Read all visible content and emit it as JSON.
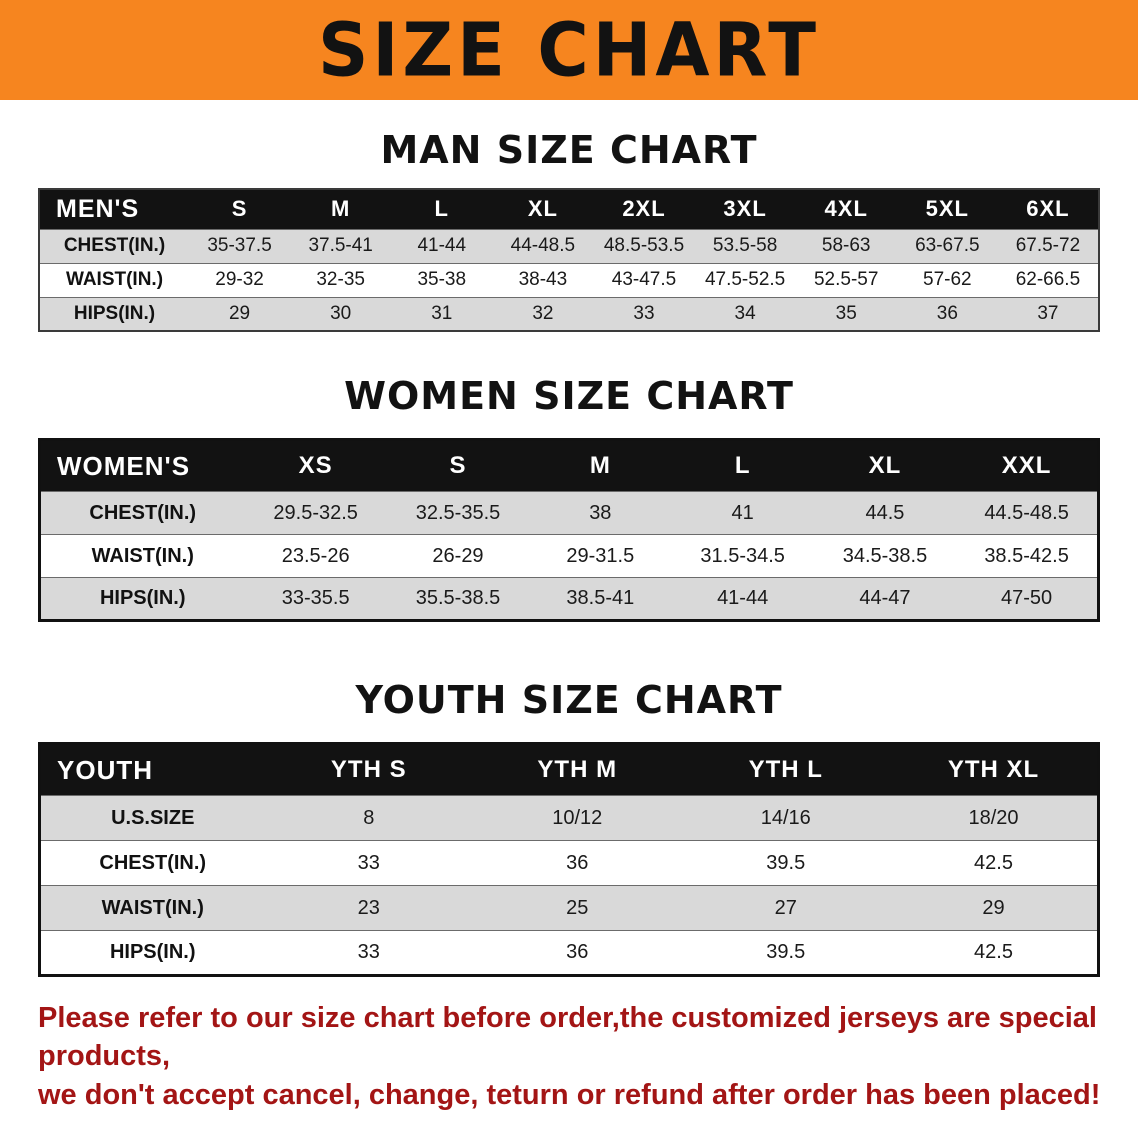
{
  "banner": {
    "title": "SIZE CHART"
  },
  "sections": {
    "men": {
      "heading": "MAN SIZE CHART",
      "table": {
        "header": [
          "MEN'S",
          "S",
          "M",
          "L",
          "XL",
          "2XL",
          "3XL",
          "4XL",
          "5XL",
          "6XL"
        ],
        "rows": [
          [
            "CHEST(IN.)",
            "35-37.5",
            "37.5-41",
            "41-44",
            "44-48.5",
            "48.5-53.5",
            "53.5-58",
            "58-63",
            "63-67.5",
            "67.5-72"
          ],
          [
            "WAIST(IN.)",
            "29-32",
            "32-35",
            "35-38",
            "38-43",
            "43-47.5",
            "47.5-52.5",
            "52.5-57",
            "57-62",
            "62-66.5"
          ],
          [
            "HIPS(IN.)",
            "29",
            "30",
            "31",
            "32",
            "33",
            "34",
            "35",
            "36",
            "37"
          ]
        ]
      }
    },
    "women": {
      "heading": "WOMEN SIZE CHART",
      "table": {
        "header": [
          "WOMEN'S",
          "XS",
          "S",
          "M",
          "L",
          "XL",
          "XXL"
        ],
        "rows": [
          [
            "CHEST(IN.)",
            "29.5-32.5",
            "32.5-35.5",
            "38",
            "41",
            "44.5",
            "44.5-48.5"
          ],
          [
            "WAIST(IN.)",
            "23.5-26",
            "26-29",
            "29-31.5",
            "31.5-34.5",
            "34.5-38.5",
            "38.5-42.5"
          ],
          [
            "HIPS(IN.)",
            "33-35.5",
            "35.5-38.5",
            "38.5-41",
            "41-44",
            "44-47",
            "47-50"
          ]
        ]
      }
    },
    "youth": {
      "heading": "YOUTH SIZE CHART",
      "table": {
        "header": [
          "YOUTH",
          "YTH S",
          "YTH M",
          "YTH L",
          "YTH XL"
        ],
        "rows": [
          [
            "U.S.SIZE",
            "8",
            "10/12",
            "14/16",
            "18/20"
          ],
          [
            "CHEST(IN.)",
            "33",
            "36",
            "39.5",
            "42.5"
          ],
          [
            "WAIST(IN.)",
            "23",
            "25",
            "27",
            "29"
          ],
          [
            "HIPS(IN.)",
            "33",
            "36",
            "39.5",
            "42.5"
          ]
        ]
      }
    }
  },
  "disclaimer": {
    "line1": "Please refer to our size chart before order,the customized jerseys are special products,",
    "line2": "we don't accept cancel, change, teturn or refund after order has been placed!"
  },
  "colors": {
    "banner_orange": "#F6851F",
    "header_black": "#121212",
    "row_gray": "#d9d9d9",
    "disclaimer_red": "#A31515",
    "ink": "#121212"
  }
}
